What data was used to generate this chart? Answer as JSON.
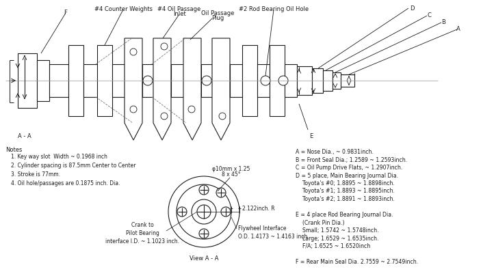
{
  "bg_color": "#ffffff",
  "line_color": "#1a1a1a",
  "notes": [
    "1. Key way slot  Width ~ 0.1968 inch",
    "2. Cylinder spacing is 87.5mm Center to Center",
    "3. Stroke is 77mm.",
    "4. Oil hole/passages are 0.1875 inch. Dia."
  ],
  "spec_lines": [
    "A = Nose Dia., ~ 0.9831inch.",
    "B = Front Seal Dia.; 1.2589 ~ 1.2593inch.",
    "C = Oil Pump Drive Flats, ~ 1.2907inch.",
    "D = 5 place, Main Bearing Journal Dia.",
    "    Toyota's #0; 1.8895 ~ 1.8898inch.",
    "    Toyota's #1; 1.8893 ~ 1.8895inch.",
    "    Toyota's #2; 1.8891 ~ 1.8893inch.",
    "",
    "E = 4 place Rod Bearing Journal Dia.",
    "    (Crank Pin Dia.)",
    "    Small; 1.5742 ~ 1.5748inch.",
    "    Large; 1.6529 ~ 1.6535inch.",
    "    F/A; 1.6525 ~ 1.6520inch",
    "",
    "F = Rear Main Seal Dia. 2.7559 ~ 2.7549inch."
  ]
}
